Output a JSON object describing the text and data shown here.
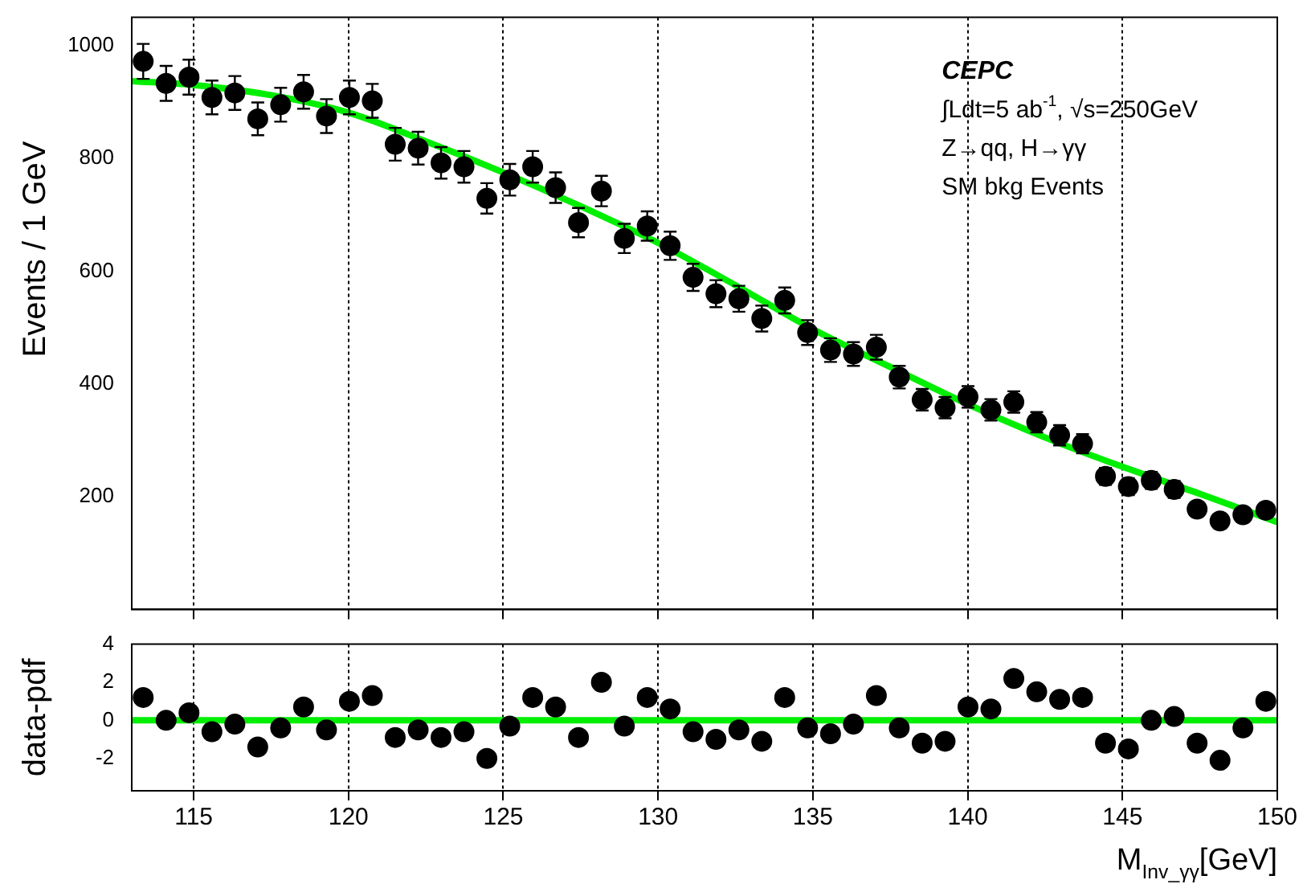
{
  "chart_data": [
    {
      "type": "scatter",
      "ylabel": "Events / 1 GeV",
      "xlim": [
        113,
        150
      ],
      "ylim": [
        0,
        1050
      ],
      "xticks": [
        115,
        120,
        125,
        130,
        135,
        140,
        145,
        150
      ],
      "yticks": [
        200,
        400,
        600,
        800,
        1000
      ],
      "grid": "x",
      "tick_labels": "y",
      "marker": "circle",
      "annotations": [
        "CEPC",
        "∫Ldt=5 ab$^{-1}$, √s=250GeV",
        "Z→qq, H→γγ",
        "SM bkg Events"
      ],
      "series": [
        {
          "color": "#000000",
          "x": [
            113.37,
            114.11,
            114.85,
            115.59,
            116.33,
            117.07,
            117.81,
            118.55,
            119.29,
            120.03,
            120.77,
            121.51,
            122.25,
            122.99,
            123.73,
            124.47,
            125.21,
            125.95,
            126.69,
            127.43,
            128.17,
            128.91,
            129.65,
            130.39,
            131.13,
            131.87,
            132.61,
            133.35,
            134.09,
            134.83,
            135.57,
            136.31,
            137.05,
            137.79,
            138.53,
            139.27,
            140.01,
            140.75,
            141.49,
            142.23,
            142.97,
            143.71,
            144.45,
            145.19,
            145.93,
            146.67,
            147.41,
            148.15,
            148.89,
            149.63
          ],
          "values": [
            972,
            933,
            944,
            908,
            916,
            870,
            895,
            918,
            875,
            908,
            902,
            825,
            818,
            792,
            785,
            729,
            762,
            785,
            748,
            686,
            742,
            658,
            680,
            645,
            589,
            560,
            551,
            516,
            548,
            491,
            460,
            453,
            465,
            412,
            372,
            358,
            377,
            354,
            368,
            332,
            309,
            294,
            236,
            218,
            229,
            213,
            178,
            157,
            168,
            176
          ],
          "errors": [
            31,
            31,
            31,
            30,
            30,
            29,
            30,
            30,
            30,
            30,
            30,
            29,
            29,
            28,
            28,
            27,
            28,
            28,
            27,
            26,
            27,
            26,
            26,
            25,
            24,
            24,
            23,
            23,
            23,
            22,
            21,
            21,
            22,
            20,
            19,
            19,
            19,
            19,
            19,
            18,
            18,
            17,
            15,
            15,
            15,
            15,
            13,
            13,
            13,
            13
          ]
        },
        {
          "type": "line",
          "marker": "none",
          "color": "#00ee00",
          "x": [
            113,
            115,
            117.5,
            120,
            122.5,
            125,
            127.5,
            130,
            132.5,
            135,
            137.5,
            140,
            142.5,
            145,
            147.5,
            150
          ],
          "values": [
            937,
            930,
            912,
            881,
            830,
            775,
            715,
            650,
            575,
            497,
            430,
            364,
            305,
            253,
            205,
            155
          ]
        }
      ]
    },
    {
      "type": "scatter",
      "ylabel": "data-pdf",
      "xlabel": "M$_{Inv_γγ}$[GeV]",
      "xlim": [
        113,
        150
      ],
      "ylim": [
        -3.7,
        4
      ],
      "xticks": [
        115,
        120,
        125,
        130,
        135,
        140,
        145,
        150
      ],
      "yticks": [
        -2,
        0,
        2,
        4
      ],
      "grid": "x",
      "marker": "circle",
      "ref_lines": [
        {
          "axis": "y",
          "value": 0,
          "color": "#00ee00"
        }
      ],
      "series": [
        {
          "color": "#000000",
          "x": [
            113.37,
            114.11,
            114.85,
            115.59,
            116.33,
            117.07,
            117.81,
            118.55,
            119.29,
            120.03,
            120.77,
            121.51,
            122.25,
            122.99,
            123.73,
            124.47,
            125.21,
            125.95,
            126.69,
            127.43,
            128.17,
            128.91,
            129.65,
            130.39,
            131.13,
            131.87,
            132.61,
            133.35,
            134.09,
            134.83,
            135.57,
            136.31,
            137.05,
            137.79,
            138.53,
            139.27,
            140.01,
            140.75,
            141.49,
            142.23,
            142.97,
            143.71,
            144.45,
            145.19,
            145.93,
            146.67,
            147.41,
            148.15,
            148.89,
            149.63
          ],
          "values": [
            1.2,
            0,
            0.4,
            -0.6,
            -0.2,
            -1.4,
            -0.4,
            0.7,
            -0.5,
            1,
            1.3,
            -0.9,
            -0.5,
            -0.9,
            -0.6,
            -2,
            -0.3,
            1.2,
            0.7,
            -0.9,
            2,
            -0.3,
            1.2,
            0.6,
            -0.6,
            -1,
            -0.5,
            -1.1,
            1.2,
            -0.4,
            -0.7,
            -0.2,
            1.3,
            -0.4,
            -1.2,
            -1.1,
            0.7,
            0.6,
            2.2,
            1.5,
            1.1,
            1.2,
            -1.2,
            -1.5,
            0,
            0.2,
            -1.2,
            -2.1,
            -0.4,
            1
          ]
        }
      ]
    }
  ]
}
